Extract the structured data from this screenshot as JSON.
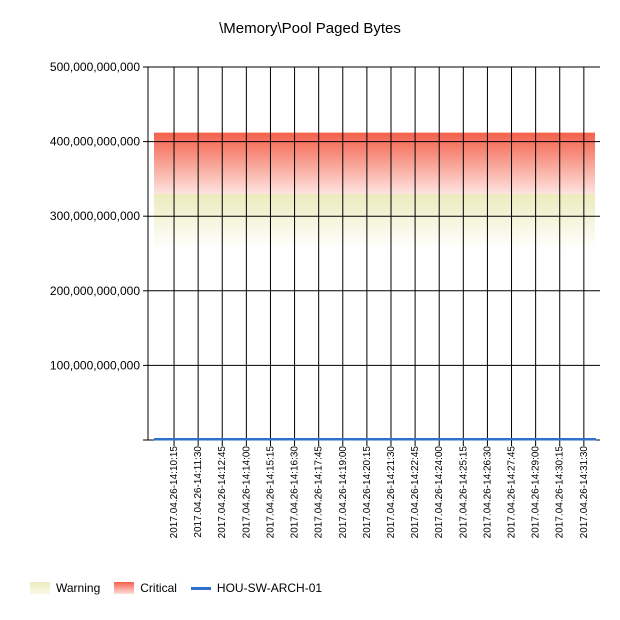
{
  "chart_data": {
    "type": "line",
    "title": "\\Memory\\Pool Paged Bytes",
    "xlabel": "",
    "ylabel": "",
    "ylim": [
      0,
      500000000000
    ],
    "y_ticks": [
      0,
      100000000000,
      200000000000,
      300000000000,
      400000000000,
      500000000000
    ],
    "y_tick_labels": [
      "",
      "100,000,000,000",
      "200,000,000,000",
      "300,000,000,000",
      "400,000,000,000",
      "500,000,000,000"
    ],
    "categories": [
      "2017.04.26-14:10:15",
      "2017.04.26-14:11:30",
      "2017.04.26-14:12:45",
      "2017.04.26-14:14:00",
      "2017.04.26-14:15:15",
      "2017.04.26-14:16:30",
      "2017.04.26-14:17:45",
      "2017.04.26-14:19:00",
      "2017.04.26-14:20:15",
      "2017.04.26-14:21:30",
      "2017.04.26-14:22:45",
      "2017.04.26-14:24:00",
      "2017.04.26-14:25:15",
      "2017.04.26-14:26:30",
      "2017.04.26-14:27:45",
      "2017.04.26-14:29:00",
      "2017.04.26-14:30:15",
      "2017.04.26-14:31:30"
    ],
    "grid": true,
    "legend_position": "bottom-left",
    "bands": [
      {
        "name": "Warning",
        "from": 255000000000,
        "to": 330000000000,
        "color": "#ecebbd"
      },
      {
        "name": "Critical",
        "from": 330000000000,
        "to": 412000000000,
        "color": "#f4604a"
      }
    ],
    "series": [
      {
        "name": "HOU-SW-ARCH-01",
        "color": "#2f6fce",
        "values": [
          1000000000,
          1000000000,
          1000000000,
          1000000000,
          1000000000,
          1000000000,
          1000000000,
          1000000000,
          1000000000,
          1000000000,
          1000000000,
          1000000000,
          1000000000,
          1000000000,
          1000000000,
          1000000000,
          1000000000,
          1000000000
        ]
      }
    ]
  }
}
